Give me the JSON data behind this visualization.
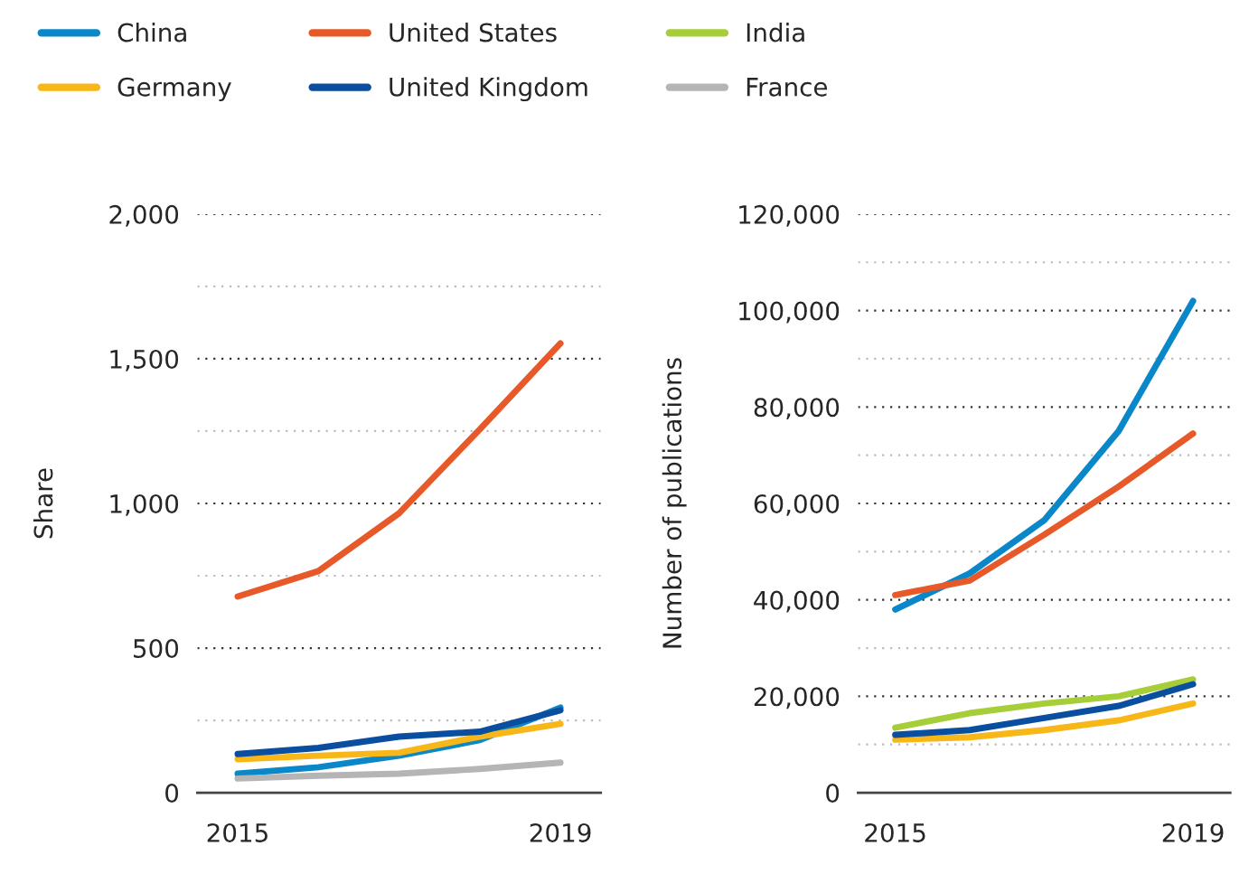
{
  "chart_data": [
    {
      "type": "line",
      "ylabel": "Share",
      "categories": [
        "2015",
        null,
        null,
        null,
        "2019"
      ],
      "ylim": [
        0,
        2000
      ],
      "yticks": [
        {
          "value": 0,
          "label": "0"
        },
        {
          "value": 250,
          "label": null
        },
        {
          "value": 500,
          "label": "500"
        },
        {
          "value": 750,
          "label": null
        },
        {
          "value": 1000,
          "label": "1,000"
        },
        {
          "value": 1250,
          "label": null
        },
        {
          "value": 1500,
          "label": "1,500"
        },
        {
          "value": 1750,
          "label": null
        },
        {
          "value": 2000,
          "label": "2,000"
        }
      ],
      "grid": "y",
      "legend": "top",
      "line_style": "solid",
      "marker": "none",
      "series": [
        {
          "color": "#0a87c9",
          "values": [
            66,
            88,
            128,
            182,
            294
          ]
        },
        {
          "color": "#e8592a",
          "values": [
            678,
            766,
            966,
            1256,
            1553
          ]
        },
        {
          "color": "#f7b718",
          "values": [
            116,
            128,
            138,
            194,
            238
          ]
        },
        {
          "color": "#0a4ea0",
          "values": [
            134,
            155,
            194,
            211,
            285
          ]
        },
        {
          "name": "France",
          "color": "#b5b5b5",
          "values": [
            49,
            59,
            66,
            82,
            104
          ]
        }
      ]
    },
    {
      "type": "line",
      "ylabel": "Number of publications",
      "categories": [
        "2015",
        null,
        null,
        null,
        "2019"
      ],
      "ylim": [
        0,
        120000
      ],
      "yticks": [
        {
          "value": 0,
          "label": "0"
        },
        {
          "value": 10000,
          "label": null
        },
        {
          "value": 20000,
          "label": "20,000"
        },
        {
          "value": 30000,
          "label": null
        },
        {
          "value": 40000,
          "label": "40,000"
        },
        {
          "value": 50000,
          "label": null
        },
        {
          "value": 60000,
          "label": "60,000"
        },
        {
          "value": 70000,
          "label": null
        },
        {
          "value": 80000,
          "label": "80,000"
        },
        {
          "value": 90000,
          "label": null
        },
        {
          "value": 100000,
          "label": "100,000"
        },
        {
          "value": 110000,
          "label": null
        },
        {
          "value": 120000,
          "label": "120,000"
        }
      ],
      "grid": "y",
      "legend": "top",
      "line_style": "solid",
      "marker": "none",
      "series": [
        {
          "name": "China",
          "color": "#0a87c9",
          "values": [
            38000,
            45500,
            56500,
            75000,
            102000
          ]
        },
        {
          "name": "United States",
          "color": "#e8592a",
          "values": [
            41000,
            44000,
            53500,
            63500,
            74500
          ]
        },
        {
          "name": "India",
          "color": "#a6ce39",
          "values": [
            13500,
            16500,
            18500,
            20000,
            23500
          ]
        },
        {
          "name": "Germany",
          "color": "#f7b718",
          "values": [
            11000,
            11500,
            13000,
            15000,
            18500
          ]
        },
        {
          "name": "United Kingdom",
          "color": "#0a4ea0",
          "values": [
            12000,
            13000,
            15500,
            18000,
            22500
          ]
        }
      ]
    }
  ]
}
